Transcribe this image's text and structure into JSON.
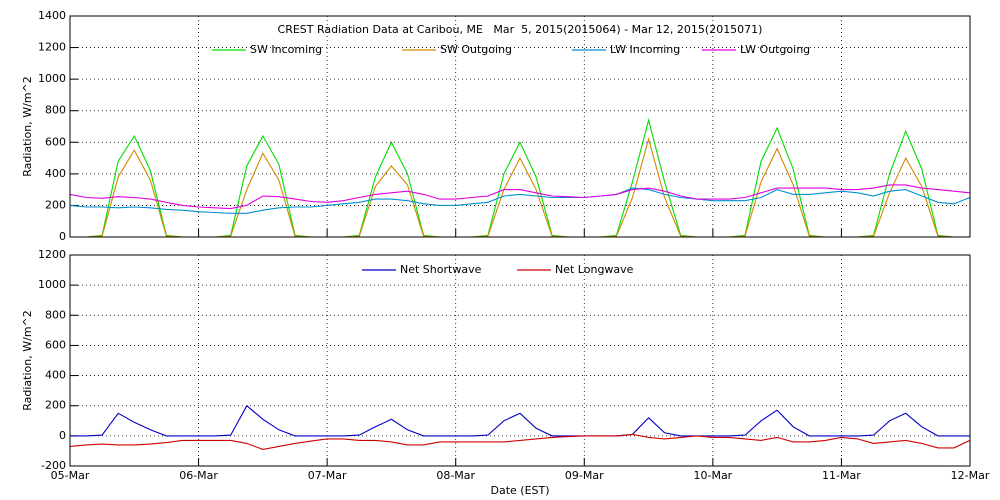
{
  "chart_data": [
    {
      "type": "line",
      "title": "CREST Radiation Data at Caribou, ME   Mar  5, 2015(2015064) - Mar 12, 2015(2015071)",
      "y_label": "Radiation, W/m^2",
      "x": [
        5,
        5.125,
        5.25,
        5.375,
        5.5,
        5.625,
        5.75,
        5.875,
        6,
        6.125,
        6.25,
        6.375,
        6.5,
        6.625,
        6.75,
        6.875,
        7,
        7.125,
        7.25,
        7.375,
        7.5,
        7.625,
        7.75,
        7.875,
        8,
        8.125,
        8.25,
        8.375,
        8.5,
        8.625,
        8.75,
        8.875,
        9,
        9.125,
        9.25,
        9.375,
        9.5,
        9.625,
        9.75,
        9.875,
        10,
        10.125,
        10.25,
        10.375,
        10.5,
        10.625,
        10.75,
        10.875,
        11,
        11.125,
        11.25,
        11.375,
        11.5,
        11.625,
        11.75,
        11.875,
        12
      ],
      "xlim": [
        5,
        12
      ],
      "xticks": [
        5,
        6,
        7,
        8,
        9,
        10,
        11,
        12
      ],
      "ylim": [
        0,
        1400
      ],
      "yticks": [
        0,
        200,
        400,
        600,
        800,
        1000,
        1200,
        1400
      ],
      "grid": true,
      "series": [
        {
          "name": "SW Incoming",
          "color": "#00dd00",
          "values": [
            0,
            0,
            10,
            480,
            640,
            420,
            10,
            0,
            0,
            0,
            10,
            450,
            640,
            460,
            10,
            0,
            0,
            0,
            10,
            380,
            600,
            400,
            10,
            0,
            0,
            0,
            10,
            400,
            600,
            380,
            10,
            0,
            0,
            0,
            10,
            350,
            740,
            350,
            10,
            0,
            0,
            0,
            10,
            480,
            690,
            430,
            10,
            0,
            0,
            0,
            10,
            400,
            670,
            430,
            10,
            0,
            0
          ]
        },
        {
          "name": "SW Outgoing",
          "color": "#d08a00",
          "values": [
            0,
            0,
            5,
            380,
            550,
            360,
            5,
            0,
            0,
            0,
            5,
            300,
            530,
            360,
            5,
            0,
            0,
            0,
            5,
            320,
            450,
            330,
            5,
            0,
            0,
            0,
            5,
            300,
            500,
            300,
            5,
            0,
            0,
            0,
            5,
            250,
            620,
            250,
            5,
            0,
            0,
            0,
            5,
            350,
            560,
            330,
            5,
            0,
            0,
            0,
            5,
            280,
            500,
            320,
            5,
            0,
            0
          ]
        },
        {
          "name": "LW Incoming",
          "color": "#0090d0",
          "values": [
            200,
            190,
            190,
            185,
            190,
            185,
            175,
            170,
            160,
            155,
            150,
            150,
            170,
            185,
            190,
            190,
            200,
            210,
            220,
            240,
            240,
            230,
            210,
            200,
            200,
            210,
            220,
            260,
            270,
            260,
            250,
            250,
            250,
            260,
            270,
            310,
            300,
            270,
            250,
            240,
            230,
            230,
            230,
            250,
            300,
            270,
            270,
            280,
            290,
            280,
            260,
            290,
            300,
            260,
            220,
            210,
            250
          ]
        },
        {
          "name": "LW Outgoing",
          "color": "#e000e0",
          "values": [
            270,
            250,
            245,
            255,
            250,
            240,
            220,
            200,
            190,
            185,
            180,
            200,
            260,
            255,
            240,
            225,
            220,
            230,
            250,
            270,
            280,
            290,
            270,
            240,
            240,
            250,
            260,
            300,
            300,
            280,
            260,
            255,
            250,
            260,
            270,
            300,
            310,
            290,
            260,
            240,
            240,
            240,
            250,
            280,
            310,
            310,
            310,
            310,
            300,
            300,
            310,
            330,
            330,
            310,
            300,
            290,
            280
          ]
        }
      ]
    },
    {
      "type": "line",
      "y_label": "Radiation, W/m^2",
      "x_label": "Date (EST)",
      "x": [
        5,
        5.125,
        5.25,
        5.375,
        5.5,
        5.625,
        5.75,
        5.875,
        6,
        6.125,
        6.25,
        6.375,
        6.5,
        6.625,
        6.75,
        6.875,
        7,
        7.125,
        7.25,
        7.375,
        7.5,
        7.625,
        7.75,
        7.875,
        8,
        8.125,
        8.25,
        8.375,
        8.5,
        8.625,
        8.75,
        8.875,
        9,
        9.125,
        9.25,
        9.375,
        9.5,
        9.625,
        9.75,
        9.875,
        10,
        10.125,
        10.25,
        10.375,
        10.5,
        10.625,
        10.75,
        10.875,
        11,
        11.125,
        11.25,
        11.375,
        11.5,
        11.625,
        11.75,
        11.875,
        12
      ],
      "xlim": [
        5,
        12
      ],
      "xticks": [
        {
          "value": 5,
          "label": "05-Mar"
        },
        {
          "value": 6,
          "label": "06-Mar"
        },
        {
          "value": 7,
          "label": "07-Mar"
        },
        {
          "value": 8,
          "label": "08-Mar"
        },
        {
          "value": 9,
          "label": "09-Mar"
        },
        {
          "value": 10,
          "label": "10-Mar"
        },
        {
          "value": 11,
          "label": "11-Mar"
        },
        {
          "value": 12,
          "label": "12-Mar"
        }
      ],
      "ylim": [
        -200,
        1200
      ],
      "yticks": [
        -200,
        0,
        200,
        400,
        600,
        800,
        1000,
        1200
      ],
      "grid": true,
      "series": [
        {
          "name": "Net Shortwave",
          "color": "#0000c8",
          "values": [
            0,
            0,
            5,
            150,
            90,
            40,
            0,
            0,
            0,
            0,
            5,
            200,
            110,
            40,
            0,
            0,
            0,
            0,
            5,
            60,
            110,
            40,
            0,
            0,
            0,
            0,
            5,
            100,
            150,
            50,
            0,
            0,
            0,
            0,
            0,
            10,
            120,
            20,
            0,
            0,
            0,
            0,
            5,
            100,
            170,
            60,
            0,
            0,
            0,
            0,
            5,
            100,
            150,
            60,
            0,
            0,
            0
          ]
        },
        {
          "name": "Net Longwave",
          "color": "#d00000",
          "values": [
            -70,
            -60,
            -55,
            -60,
            -60,
            -55,
            -45,
            -30,
            -30,
            -30,
            -30,
            -50,
            -90,
            -70,
            -50,
            -35,
            -20,
            -20,
            -30,
            -30,
            -40,
            -60,
            -60,
            -40,
            -40,
            -40,
            -40,
            -40,
            -30,
            -20,
            -10,
            -5,
            0,
            0,
            0,
            10,
            -10,
            -20,
            -10,
            0,
            -10,
            -10,
            -20,
            -30,
            -10,
            -40,
            -40,
            -30,
            -10,
            -20,
            -50,
            -40,
            -30,
            -50,
            -80,
            -80,
            -30
          ]
        }
      ]
    }
  ]
}
